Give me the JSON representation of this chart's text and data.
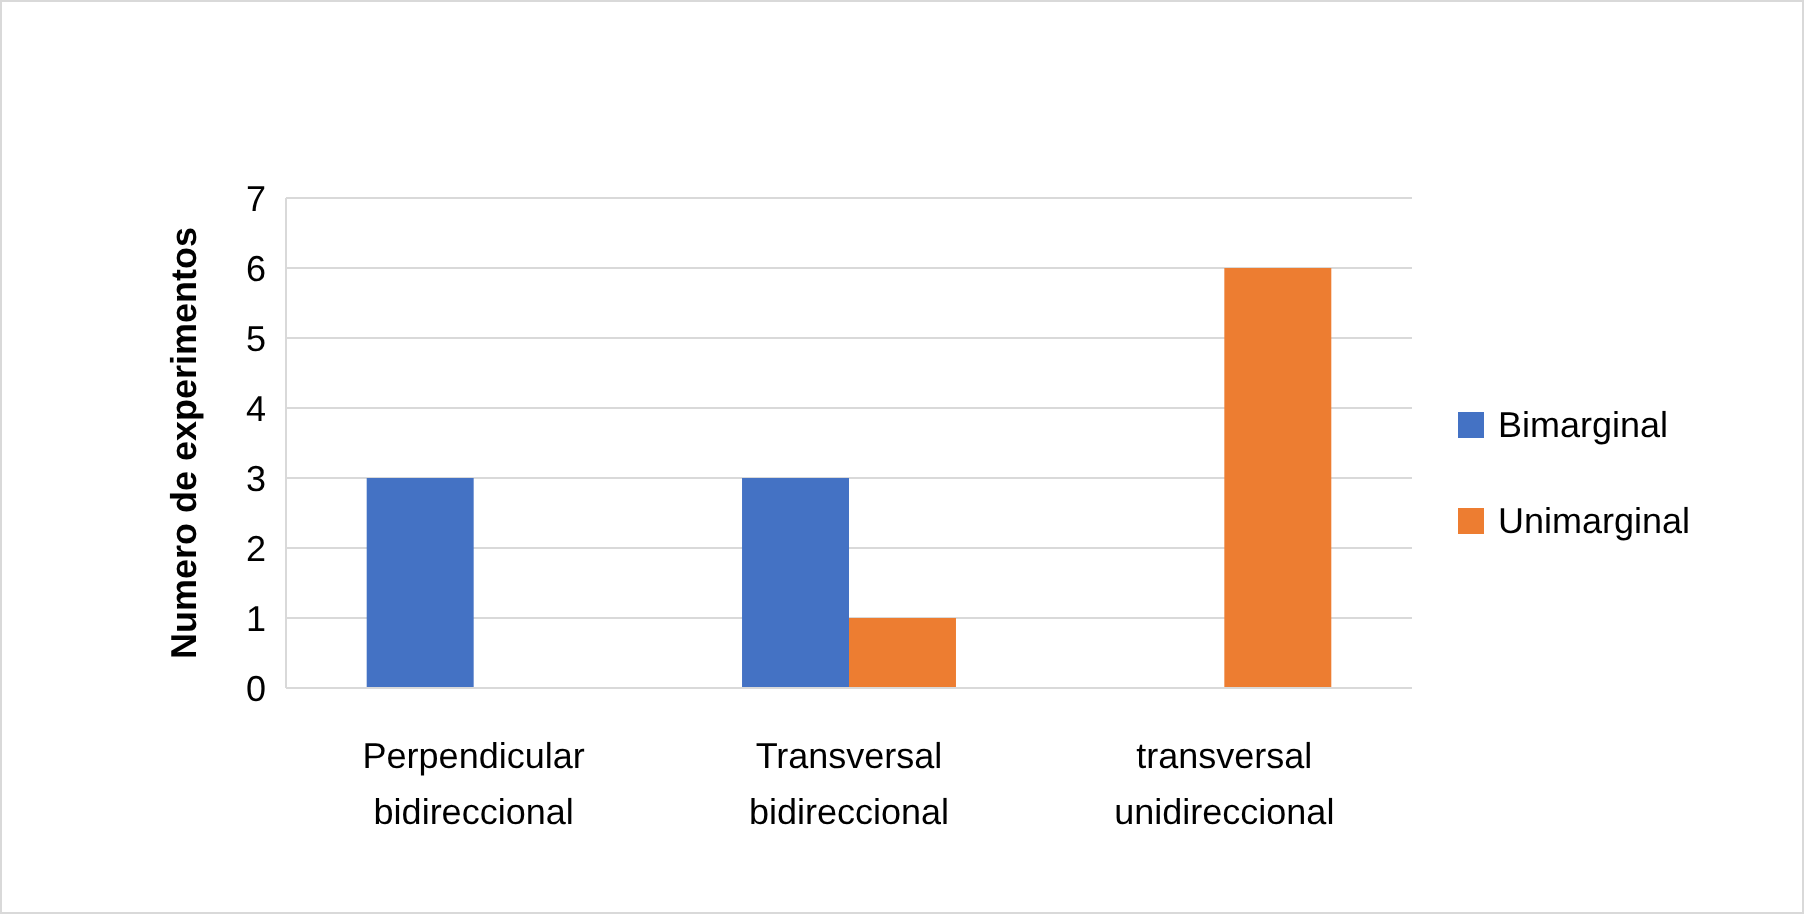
{
  "chart_data": {
    "type": "bar",
    "ylabel": "Numero de experimentos",
    "categories": [
      "Perpendicular\nbidireccional",
      "Transversal\nbidireccional",
      "transversal\nunidireccional"
    ],
    "series": [
      {
        "name": "Bimarginal",
        "color": "#4472c4",
        "values": [
          3,
          3,
          0
        ]
      },
      {
        "name": "Unimarginal",
        "color": "#ed7d31",
        "values": [
          0,
          1,
          6
        ]
      }
    ],
    "ylim": [
      0,
      7
    ],
    "yticks": [
      0,
      1,
      2,
      3,
      4,
      5,
      6,
      7
    ],
    "grid": "y",
    "legend": "right"
  }
}
